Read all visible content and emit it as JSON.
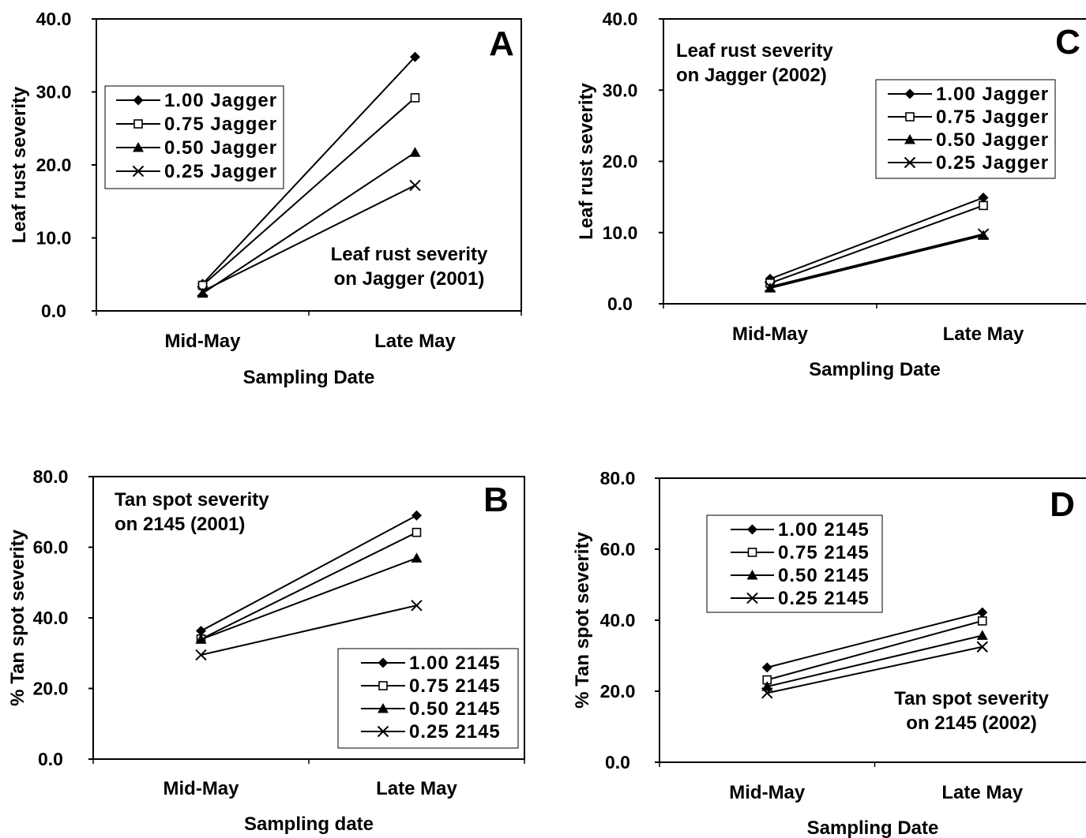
{
  "chart_data": [
    {
      "type": "line",
      "panel": "A",
      "annotation": [
        "Leaf rust severity",
        "on Jagger (2001)"
      ],
      "xlabel": "Sampling Date",
      "ylabel": "Leaf rust severity",
      "categories": [
        "Mid-May",
        "Late May"
      ],
      "ylim": [
        0,
        40
      ],
      "yticks": [
        "0.0",
        "10.0",
        "20.0",
        "30.0",
        "40.0"
      ],
      "legend_position": "top-left",
      "series": [
        {
          "name": "1.00 Jagger",
          "marker": "diamond",
          "values": [
            3.7,
            34.8
          ]
        },
        {
          "name": "0.75 Jagger",
          "marker": "square-open",
          "values": [
            3.5,
            29.2
          ]
        },
        {
          "name": "0.50 Jagger",
          "marker": "triangle",
          "values": [
            2.4,
            21.7
          ]
        },
        {
          "name": "0.25 Jagger",
          "marker": "x",
          "values": [
            2.7,
            17.2
          ]
        }
      ]
    },
    {
      "type": "line",
      "panel": "C",
      "annotation": [
        "Leaf rust severity",
        "on Jagger (2002)"
      ],
      "xlabel": "Sampling Date",
      "ylabel": "Leaf rust severity",
      "categories": [
        "Mid-May",
        "Late May"
      ],
      "ylim": [
        0,
        40
      ],
      "yticks": [
        "0.0",
        "10.0",
        "20.0",
        "30.0",
        "40.0"
      ],
      "legend_position": "top-right",
      "series": [
        {
          "name": "1.00 Jagger",
          "marker": "diamond",
          "values": [
            3.5,
            14.9
          ]
        },
        {
          "name": "0.75 Jagger",
          "marker": "square-open",
          "values": [
            2.9,
            13.8
          ]
        },
        {
          "name": "0.50 Jagger",
          "marker": "triangle",
          "values": [
            2.2,
            9.6
          ]
        },
        {
          "name": "0.25 Jagger",
          "marker": "x",
          "values": [
            2.4,
            9.8
          ]
        }
      ]
    },
    {
      "type": "line",
      "panel": "B",
      "annotation": [
        "Tan spot severity",
        "on 2145 (2001)"
      ],
      "xlabel": "Sampling date",
      "ylabel": "% Tan spot severity",
      "categories": [
        "Mid-May",
        "Late May"
      ],
      "ylim": [
        0,
        80
      ],
      "yticks": [
        "0.0",
        "20.0",
        "40.0",
        "60.0",
        "80.0"
      ],
      "legend_position": "bottom-right",
      "series": [
        {
          "name": "1.00 2145",
          "marker": "diamond",
          "values": [
            36.3,
            69.0
          ]
        },
        {
          "name": "0.75 2145",
          "marker": "square-open",
          "values": [
            34.0,
            64.2
          ]
        },
        {
          "name": "0.50 2145",
          "marker": "triangle",
          "values": [
            33.9,
            56.9
          ]
        },
        {
          "name": "0.25 2145",
          "marker": "x",
          "values": [
            29.5,
            43.5
          ]
        }
      ]
    },
    {
      "type": "line",
      "panel": "D",
      "annotation": [
        "Tan spot severity",
        "on 2145 (2002)"
      ],
      "xlabel": "Sampling Date",
      "ylabel": "% Tan spot severity",
      "categories": [
        "Mid-May",
        "Late May"
      ],
      "ylim": [
        0,
        80
      ],
      "yticks": [
        "0.0",
        "20.0",
        "40.0",
        "60.0",
        "80.0"
      ],
      "legend_position": "top-left",
      "series": [
        {
          "name": "1.00 2145",
          "marker": "diamond",
          "values": [
            26.7,
            42.2
          ]
        },
        {
          "name": "0.75 2145",
          "marker": "square-open",
          "values": [
            23.2,
            39.8
          ]
        },
        {
          "name": "0.50 2145",
          "marker": "triangle",
          "values": [
            21.3,
            35.7
          ]
        },
        {
          "name": "0.25 2145",
          "marker": "x",
          "values": [
            19.5,
            32.5
          ]
        }
      ]
    }
  ]
}
